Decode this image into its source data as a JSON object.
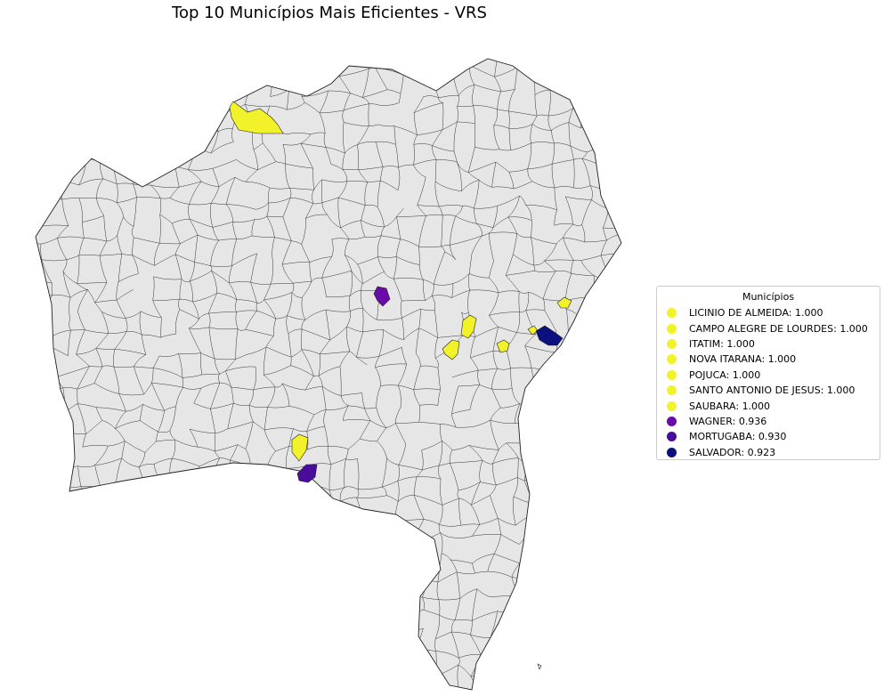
{
  "title": "Top 10 Municípios Mais Eficientes - VRS",
  "legend": {
    "title": "Municípios",
    "items": [
      {
        "name": "LICINIO DE ALMEIDA",
        "value": "1.000",
        "label": "LICINIO DE ALMEIDA: 1.000",
        "color": "#f2f22a"
      },
      {
        "name": "CAMPO ALEGRE DE LOURDES",
        "value": "1.000",
        "label": "CAMPO ALEGRE DE LOURDES: 1.000",
        "color": "#f2f22a"
      },
      {
        "name": "ITATIM",
        "value": "1.000",
        "label": "ITATIM: 1.000",
        "color": "#f2f22a"
      },
      {
        "name": "NOVA ITARANA",
        "value": "1.000",
        "label": "NOVA ITARANA: 1.000",
        "color": "#f2f22a"
      },
      {
        "name": "POJUCA",
        "value": "1.000",
        "label": "POJUCA: 1.000",
        "color": "#f2f22a"
      },
      {
        "name": "SANTO ANTONIO DE JESUS",
        "value": "1.000",
        "label": "SANTO ANTONIO DE JESUS: 1.000",
        "color": "#f2f22a"
      },
      {
        "name": "SAUBARA",
        "value": "1.000",
        "label": "SAUBARA: 1.000",
        "color": "#f2f22a"
      },
      {
        "name": "WAGNER",
        "value": "0.936",
        "label": "WAGNER: 0.936",
        "color": "#6a0aa8"
      },
      {
        "name": "MORTUGABA",
        "value": "0.930",
        "label": "MORTUGABA: 0.930",
        "color": "#4a0c9c"
      },
      {
        "name": "SALVADOR",
        "value": "0.923",
        "label": "SALVADOR: 0.923",
        "color": "#0c0f7e"
      }
    ]
  },
  "colors": {
    "base_fill": "#e6e6e6",
    "border": "#222222",
    "top_value": "#f2f22a"
  }
}
